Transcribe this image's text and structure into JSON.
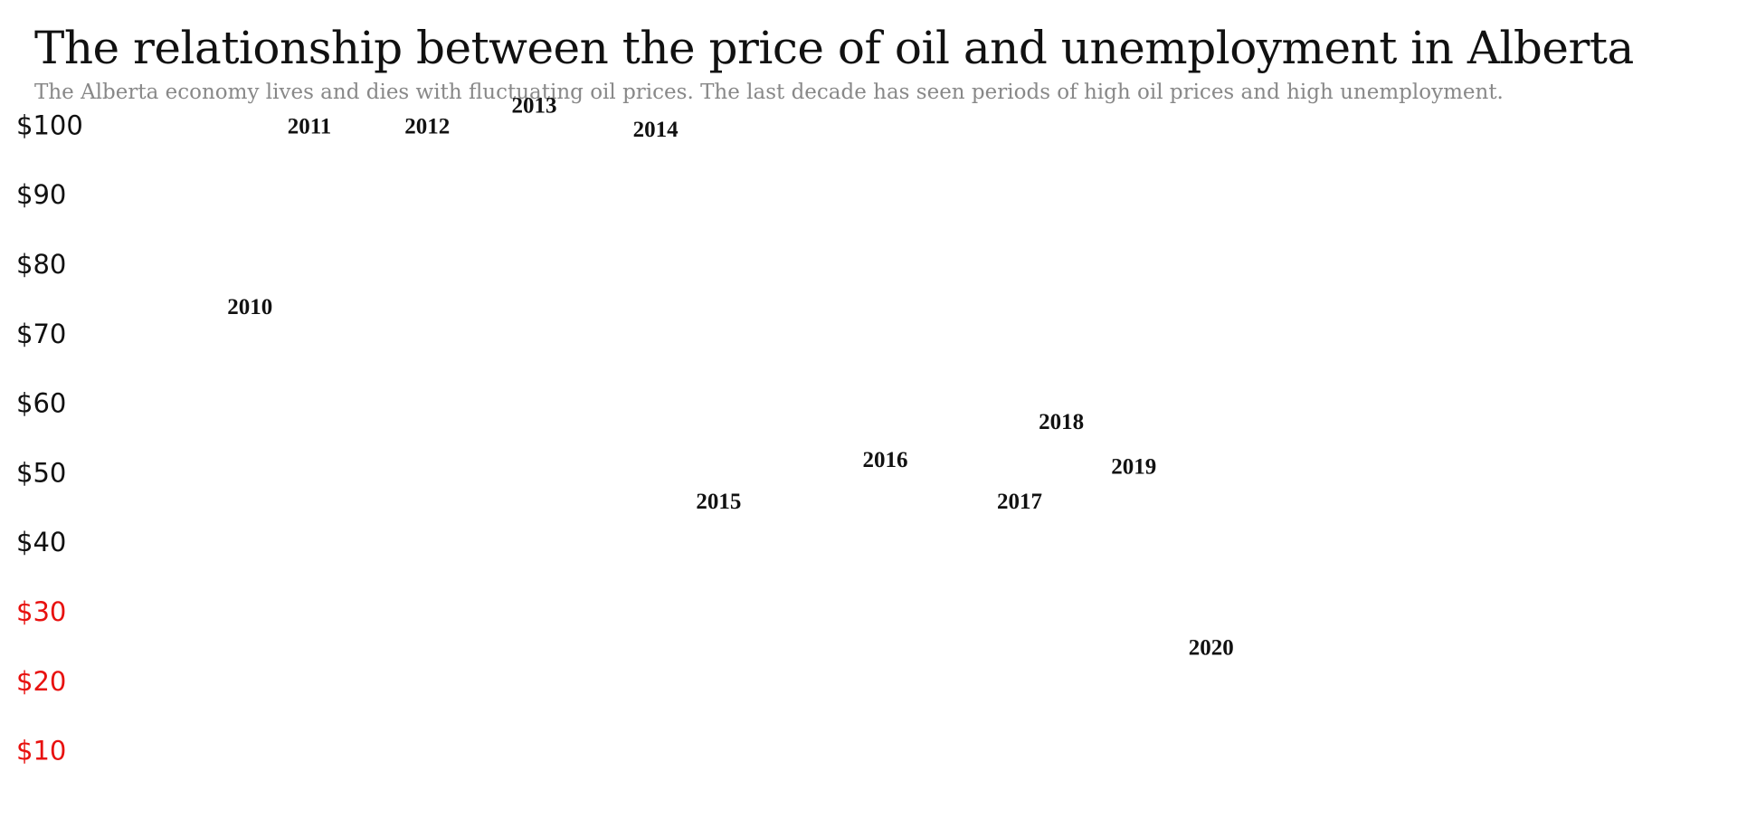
{
  "title": "The relationship between the price of oil and unemployment in Alberta",
  "subtitle": "The Alberta economy lives and dies with fluctuating oil prices. The last decade has seen periods of high oil prices and high unemployment.",
  "chart_data": {
    "type": "scatter",
    "title": "The relationship between the price of oil and unemployment in Alberta",
    "subtitle": "The Alberta economy lives and dies with fluctuating oil prices. The last decade has seen periods of high oil prices and high unemployment.",
    "xlabel": "",
    "ylabel": "",
    "yticks": [
      {
        "value": 100,
        "label": "$100",
        "color": "#111111"
      },
      {
        "value": 90,
        "label": "$90",
        "color": "#111111"
      },
      {
        "value": 80,
        "label": "$80",
        "color": "#111111"
      },
      {
        "value": 70,
        "label": "$70",
        "color": "#111111"
      },
      {
        "value": 60,
        "label": "$60",
        "color": "#111111"
      },
      {
        "value": 50,
        "label": "$50",
        "color": "#111111"
      },
      {
        "value": 40,
        "label": "$40",
        "color": "#111111"
      },
      {
        "value": 30,
        "label": "$30",
        "color": "#e8110f"
      },
      {
        "value": 20,
        "label": "$20",
        "color": "#e8110f"
      },
      {
        "value": 10,
        "label": "$10",
        "color": "#e8110f"
      }
    ],
    "ylim": [
      5,
      105
    ],
    "xlim": [
      0,
      1
    ],
    "points": [
      {
        "label": "2010",
        "x": 0.077,
        "y": 74
      },
      {
        "label": "2011",
        "x": 0.127,
        "y": 100
      },
      {
        "label": "2012",
        "x": 0.226,
        "y": 100
      },
      {
        "label": "2013",
        "x": 0.316,
        "y": 103
      },
      {
        "label": "2014",
        "x": 0.418,
        "y": 99.5
      },
      {
        "label": "2015",
        "x": 0.471,
        "y": 46
      },
      {
        "label": "2016",
        "x": 0.611,
        "y": 52
      },
      {
        "label": "2017",
        "x": 0.724,
        "y": 46
      },
      {
        "label": "2018",
        "x": 0.759,
        "y": 57.5
      },
      {
        "label": "2019",
        "x": 0.82,
        "y": 51
      },
      {
        "label": "2020",
        "x": 0.885,
        "y": 25
      },
      {
        "label": "",
        "x": 1.0,
        "y": 25
      }
    ],
    "grid": false,
    "legend": "none"
  }
}
